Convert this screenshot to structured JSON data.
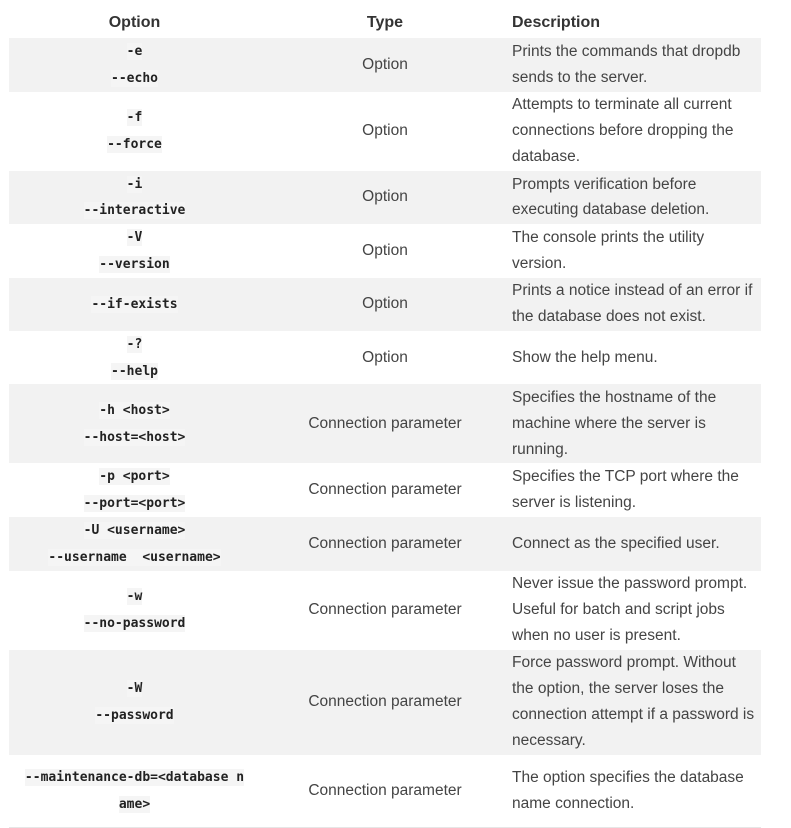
{
  "headers": {
    "option": "Option",
    "type": "Type",
    "description": "Description"
  },
  "rows": [
    {
      "options": [
        "-e",
        "--echo"
      ],
      "type": "Option",
      "description": "Prints the commands that dropdb sends to the server.",
      "shaded": true
    },
    {
      "options": [
        "-f",
        "--force"
      ],
      "type": "Option",
      "description": "Attempts to terminate all current connections before dropping the database.",
      "shaded": false
    },
    {
      "options": [
        "-i",
        "--interactive"
      ],
      "type": "Option",
      "description": "Prompts verification before executing database deletion.",
      "shaded": true
    },
    {
      "options": [
        "-V",
        "--version"
      ],
      "type": "Option",
      "description": "The console prints the utility version.",
      "shaded": false
    },
    {
      "options": [
        "--if-exists"
      ],
      "type": "Option",
      "description": "Prints a notice instead of an error if the database does not exist.",
      "shaded": true
    },
    {
      "options": [
        "-?",
        "--help"
      ],
      "type": "Option",
      "description": "Show the help menu.",
      "shaded": false
    },
    {
      "options": [
        "-h <host>",
        "--host=<host>"
      ],
      "type": "Connection parameter",
      "description": "Specifies the hostname of the machine where the server is running.",
      "shaded": true
    },
    {
      "options": [
        "-p <port>",
        "--port=<port>"
      ],
      "type": "Connection parameter",
      "description": "Specifies the TCP port where the server is listening.",
      "shaded": false
    },
    {
      "options": [
        "-U <username>",
        "--username  <username>"
      ],
      "type": "Connection parameter",
      "description": "Connect as the specified user.",
      "shaded": true
    },
    {
      "options": [
        "-w",
        "--no-password"
      ],
      "type": "Connection parameter",
      "description": "Never issue the password prompt. Useful for batch and script jobs when no user is present.",
      "shaded": false
    },
    {
      "options": [
        "-W",
        "--password"
      ],
      "type": "Connection parameter",
      "description": "Force password prompt. Without the option, the server loses the connection attempt if a password is necessary.",
      "shaded": true
    },
    {
      "options": [
        "--maintenance-db=<database n",
        "ame>"
      ],
      "type": "Connection parameter",
      "description": "The option specifies the database name connection.",
      "shaded": false
    }
  ]
}
